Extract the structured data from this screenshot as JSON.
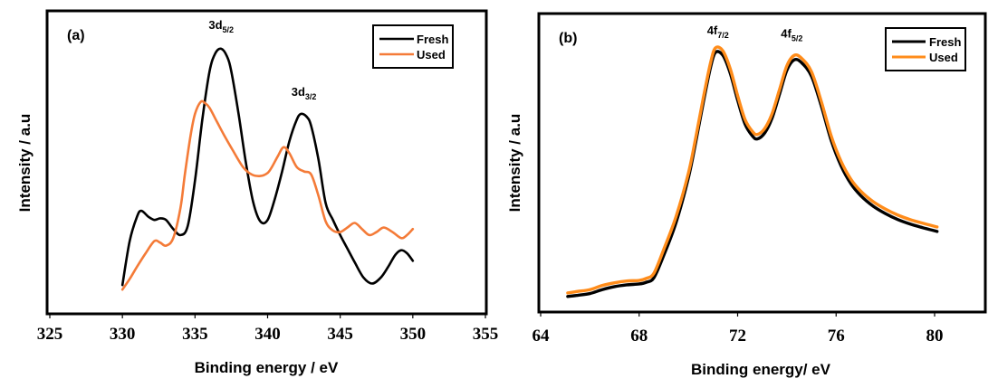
{
  "chart_data": [
    {
      "type": "line",
      "panel_label": "(a)",
      "title": "",
      "xlabel": "Binding energy / eV",
      "ylabel": "Intensity / a.u",
      "xlim": [
        325,
        355
      ],
      "ylim": [
        0,
        100
      ],
      "xticks": [
        325,
        330,
        335,
        340,
        345,
        350,
        355
      ],
      "yticks_shown": false,
      "grid": false,
      "legend": {
        "position": "top-right",
        "entries": [
          "Fresh",
          "Used"
        ]
      },
      "annotations": [
        {
          "text": "3d",
          "sub": "5/2",
          "x": 336.8,
          "y": 94
        },
        {
          "text": "3d",
          "sub": "3/2",
          "x": 342.5,
          "y": 72
        }
      ],
      "series": [
        {
          "name": "Fresh",
          "color": "#000000",
          "x": [
            330,
            330.5,
            331,
            331.3,
            331.8,
            332.2,
            332.6,
            333,
            333.5,
            334,
            334.5,
            335,
            335.5,
            336,
            336.4,
            336.8,
            337.2,
            337.5,
            338,
            338.5,
            339,
            339.5,
            340,
            340.5,
            341,
            341.5,
            342,
            342.3,
            342.7,
            343,
            343.5,
            344,
            344.5,
            345,
            345.5,
            346,
            346.6,
            347.2,
            347.8,
            348.3,
            348.8,
            349.2,
            349.6,
            350
          ],
          "y": [
            9.5,
            24,
            32,
            34,
            32,
            31,
            31.5,
            31,
            28,
            26,
            29,
            44,
            64,
            80,
            86,
            87.5,
            85,
            80,
            66,
            50,
            37,
            30.5,
            31,
            38,
            47,
            57,
            64,
            66,
            65,
            62,
            51,
            36.5,
            31,
            26,
            21.5,
            17,
            12,
            10,
            12,
            15.5,
            19.5,
            21,
            20,
            17.5
          ]
        },
        {
          "name": "Used",
          "color": "#F47B38",
          "x": [
            330,
            330.5,
            331,
            331.6,
            332.2,
            332.6,
            333,
            333.5,
            334,
            334.3,
            334.7,
            335,
            335.4,
            335.7,
            336,
            336.5,
            337,
            337.6,
            338.3,
            338.9,
            339.5,
            340,
            340.3,
            340.7,
            341.1,
            341.5,
            342,
            342.5,
            343,
            343.5,
            344,
            344.5,
            345,
            345.5,
            346,
            346.5,
            347,
            347.5,
            348,
            348.6,
            349.2,
            349.6,
            350
          ],
          "y": [
            8,
            11.5,
            15.5,
            20,
            24,
            23.5,
            22.5,
            25,
            35,
            46,
            59,
            66,
            70,
            69.5,
            68,
            63.5,
            59,
            54,
            48.5,
            46,
            45.5,
            46.5,
            48.5,
            52,
            55,
            53,
            48.5,
            47,
            46,
            39,
            30.5,
            27.5,
            27,
            28.5,
            30,
            28,
            26,
            27,
            28.5,
            27,
            25,
            26,
            28
          ]
        }
      ]
    },
    {
      "type": "line",
      "panel_label": "(b)",
      "title": "",
      "xlabel": "Binding energy/ eV",
      "ylabel": "Intensity / a.u",
      "xlim": [
        64,
        82
      ],
      "ylim": [
        0,
        100
      ],
      "xticks": [
        64,
        68,
        72,
        76,
        80
      ],
      "yticks_shown": false,
      "grid": false,
      "legend": {
        "position": "top-right",
        "entries": [
          "Fresh",
          "Used"
        ]
      },
      "annotations": [
        {
          "text": "4f",
          "sub": "7/2",
          "x": 71.2,
          "y": 93
        },
        {
          "text": "4f",
          "sub": "5/2",
          "x": 74.2,
          "y": 92
        }
      ],
      "series": [
        {
          "name": "Fresh",
          "color": "#000000",
          "x": [
            65.1,
            65.5,
            66,
            66.5,
            67,
            67.5,
            68,
            68.3,
            68.6,
            69,
            69.5,
            70,
            70.3,
            70.6,
            70.9,
            71.1,
            71.4,
            71.7,
            72,
            72.3,
            72.6,
            72.8,
            73.1,
            73.4,
            73.7,
            74,
            74.3,
            74.6,
            75,
            75.4,
            75.8,
            76.2,
            76.6,
            77,
            77.5,
            78,
            78.5,
            79,
            79.5,
            80.1
          ],
          "y": [
            5.2,
            5.6,
            6.2,
            7.5,
            8.5,
            9.1,
            9.4,
            10,
            11.5,
            19,
            30,
            45,
            57,
            70,
            82,
            87,
            86,
            80,
            71,
            63,
            59,
            58,
            60,
            65,
            73,
            81,
            84.5,
            83.5,
            79,
            69,
            57.5,
            49,
            43,
            39,
            35.5,
            33,
            31,
            29.5,
            28.3,
            27
          ]
        },
        {
          "name": "Used",
          "color": "#FF8C1A",
          "x": [
            65.1,
            65.5,
            66,
            66.5,
            67,
            67.5,
            68,
            68.3,
            68.6,
            69,
            69.5,
            70,
            70.3,
            70.6,
            70.9,
            71.1,
            71.4,
            71.7,
            72,
            72.3,
            72.6,
            72.8,
            73.1,
            73.4,
            73.7,
            74,
            74.3,
            74.6,
            75,
            75.4,
            75.8,
            76.2,
            76.6,
            77,
            77.5,
            78,
            78.5,
            79,
            79.5,
            80.1
          ],
          "y": [
            6.4,
            6.9,
            7.5,
            8.9,
            9.8,
            10.4,
            10.6,
            11.3,
            13,
            21,
            32,
            46.5,
            58.5,
            71.5,
            83.5,
            88.5,
            87.5,
            81.5,
            72.5,
            64.5,
            60.5,
            59.5,
            61.5,
            66.5,
            74.5,
            82.5,
            86,
            85,
            80.5,
            70.5,
            59,
            50.5,
            44.5,
            40.5,
            37,
            34.5,
            32.5,
            31,
            29.8,
            28.5
          ]
        }
      ]
    }
  ]
}
